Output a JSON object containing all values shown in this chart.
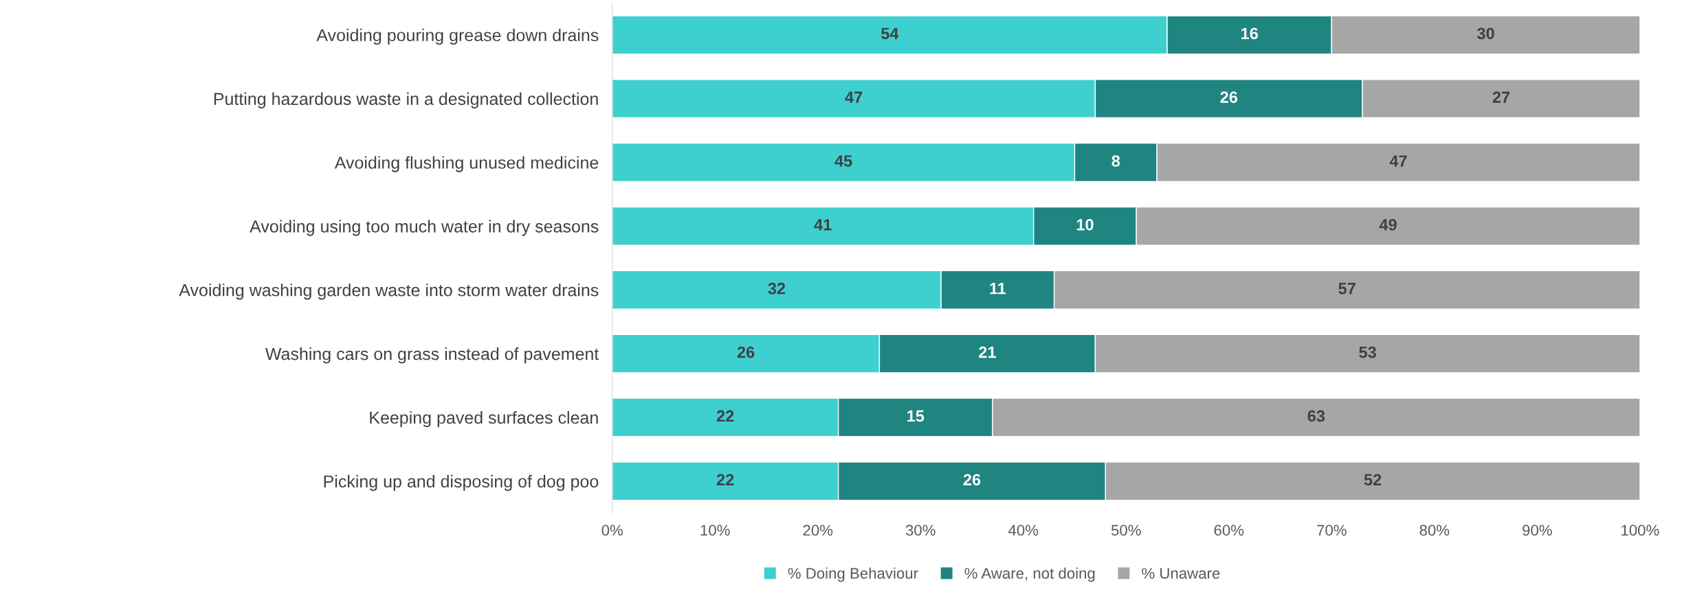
{
  "chart_data": {
    "type": "bar",
    "orientation": "horizontal",
    "stacked": true,
    "data_labels": true,
    "legend": "bottom",
    "grid": false,
    "categories": [
      "Avoiding pouring grease down drains",
      "Putting hazardous waste in a designated collection",
      "Avoiding flushing unused medicine",
      "Avoiding using too much water in dry seasons",
      "Avoiding washing garden waste into storm water drains",
      "Washing cars on grass instead of pavement",
      "Keeping paved surfaces clean",
      "Picking up and disposing of dog poo"
    ],
    "series": [
      {
        "name": "% Doing Behaviour",
        "color": "#3ecfcf",
        "values": [
          54,
          47,
          45,
          41,
          32,
          26,
          22,
          22
        ]
      },
      {
        "name": "% Aware, not doing",
        "color": "#1f8580",
        "values": [
          16,
          26,
          8,
          10,
          11,
          21,
          15,
          26
        ]
      },
      {
        "name": "% Unaware",
        "color": "#a6a6a6",
        "values": [
          30,
          27,
          47,
          49,
          57,
          53,
          63,
          52
        ]
      }
    ],
    "xlim": [
      0,
      100
    ],
    "xticks": [
      {
        "value": 0,
        "label": "0%"
      },
      {
        "value": 10,
        "label": "10%"
      },
      {
        "value": 20,
        "label": "20%"
      },
      {
        "value": 30,
        "label": "30%"
      },
      {
        "value": 40,
        "label": "40%"
      },
      {
        "value": 50,
        "label": "50%"
      },
      {
        "value": 60,
        "label": "60%"
      },
      {
        "value": 70,
        "label": "70%"
      },
      {
        "value": 80,
        "label": "80%"
      },
      {
        "value": 90,
        "label": "90%"
      },
      {
        "value": 100,
        "label": "100%"
      }
    ]
  }
}
